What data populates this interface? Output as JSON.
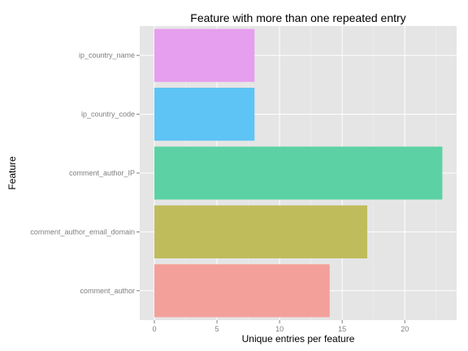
{
  "chart_data": {
    "type": "bar",
    "orientation": "horizontal",
    "title": "Feature with more than one repeated entry",
    "xlabel": "Unique entries per feature",
    "ylabel": "Feature",
    "xlim": [
      0,
      23.8
    ],
    "x_ticks": [
      0,
      5,
      10,
      15,
      20
    ],
    "x_tick_labels": [
      "0",
      "5",
      "10",
      "15",
      "20"
    ],
    "grid": true,
    "legend": "none",
    "categories": [
      "comment_author",
      "comment_author_email_domain",
      "comment_author_IP",
      "ip_country_code",
      "ip_country_name"
    ],
    "values": [
      14,
      17,
      23,
      8,
      8
    ],
    "colors": [
      "#F4A09A",
      "#BFBC5C",
      "#5CD2A4",
      "#5EC4F5",
      "#E69EEE"
    ],
    "panel_background": "#E5E5E5",
    "grid_color": "#FFFFFF"
  }
}
